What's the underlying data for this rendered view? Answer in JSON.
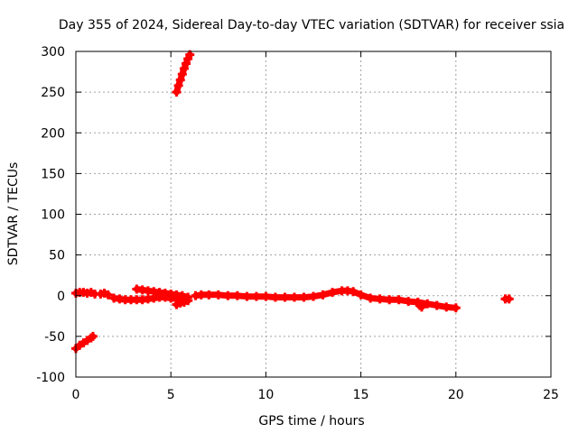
{
  "chart_data": {
    "type": "scatter",
    "title": "Day 355 of 2024, Sidereal Day-to-day VTEC variation (SDTVAR) for receiver ssia",
    "xlabel": "GPS time / hours",
    "ylabel": "SDTVAR / TECUs",
    "xlim": [
      0,
      25
    ],
    "ylim": [
      -100,
      300
    ],
    "xticks": [
      0,
      5,
      10,
      15,
      20,
      25
    ],
    "yticks": [
      -100,
      -50,
      0,
      50,
      100,
      150,
      200,
      250,
      300
    ],
    "grid": true,
    "marker_color": "#ff0000",
    "segments": [
      {
        "x": [
          0.0,
          0.2,
          0.4,
          0.6,
          0.8,
          1.0
        ],
        "y": [
          3,
          4,
          4,
          3,
          4,
          2
        ]
      },
      {
        "x": [
          1.3,
          1.5,
          1.7
        ],
        "y": [
          2,
          3,
          1
        ]
      },
      {
        "x": [
          2.0,
          2.3,
          2.6,
          2.9,
          3.2,
          3.5,
          3.8,
          4.1,
          4.4,
          4.7,
          5.0,
          5.3,
          5.6,
          5.9
        ],
        "y": [
          -3,
          -4,
          -5,
          -5,
          -5,
          -5,
          -4,
          -3,
          -2,
          -2,
          -3,
          -4,
          -5,
          -6
        ]
      },
      {
        "x": [
          3.2,
          3.5,
          3.8,
          4.1,
          4.4,
          4.7,
          5.0,
          5.3,
          5.6,
          5.9
        ],
        "y": [
          8,
          7,
          6,
          5,
          4,
          3,
          2,
          1,
          0,
          -2
        ]
      },
      {
        "x": [
          5.3,
          5.5,
          5.7,
          5.9
        ],
        "y": [
          -11,
          -9,
          -8,
          -6
        ]
      },
      {
        "x": [
          6.3,
          6.6,
          7.0,
          7.5,
          8.0,
          8.5,
          9.0,
          9.5,
          10.0,
          10.5,
          11.0,
          11.5,
          12.0,
          12.5,
          13.0,
          13.5,
          14.0,
          14.3,
          14.6,
          15.0,
          15.5,
          16.0,
          16.5,
          17.0,
          17.5,
          18.0,
          18.5,
          19.0,
          19.5,
          20.0
        ],
        "y": [
          0,
          1,
          1,
          1,
          0,
          0,
          -1,
          -1,
          -1,
          -2,
          -2,
          -2,
          -2,
          -1,
          1,
          4,
          6,
          6,
          5,
          1,
          -3,
          -4,
          -5,
          -5,
          -7,
          -8,
          -10,
          -12,
          -14,
          -15
        ]
      },
      {
        "x": [
          18.0,
          18.1,
          18.2
        ],
        "y": [
          -9,
          -12,
          -14
        ]
      },
      {
        "x": [
          22.6,
          22.8
        ],
        "y": [
          -4,
          -4
        ]
      },
      {
        "x": [
          0.0,
          0.2,
          0.4,
          0.6,
          0.8,
          0.9
        ],
        "y": [
          -65,
          -61,
          -58,
          -55,
          -52,
          -50
        ]
      },
      {
        "x": [
          5.3,
          5.4,
          5.5,
          5.6,
          5.7,
          5.8,
          5.9,
          6.0
        ],
        "y": [
          250,
          258,
          265,
          272,
          279,
          285,
          291,
          296
        ]
      }
    ]
  }
}
